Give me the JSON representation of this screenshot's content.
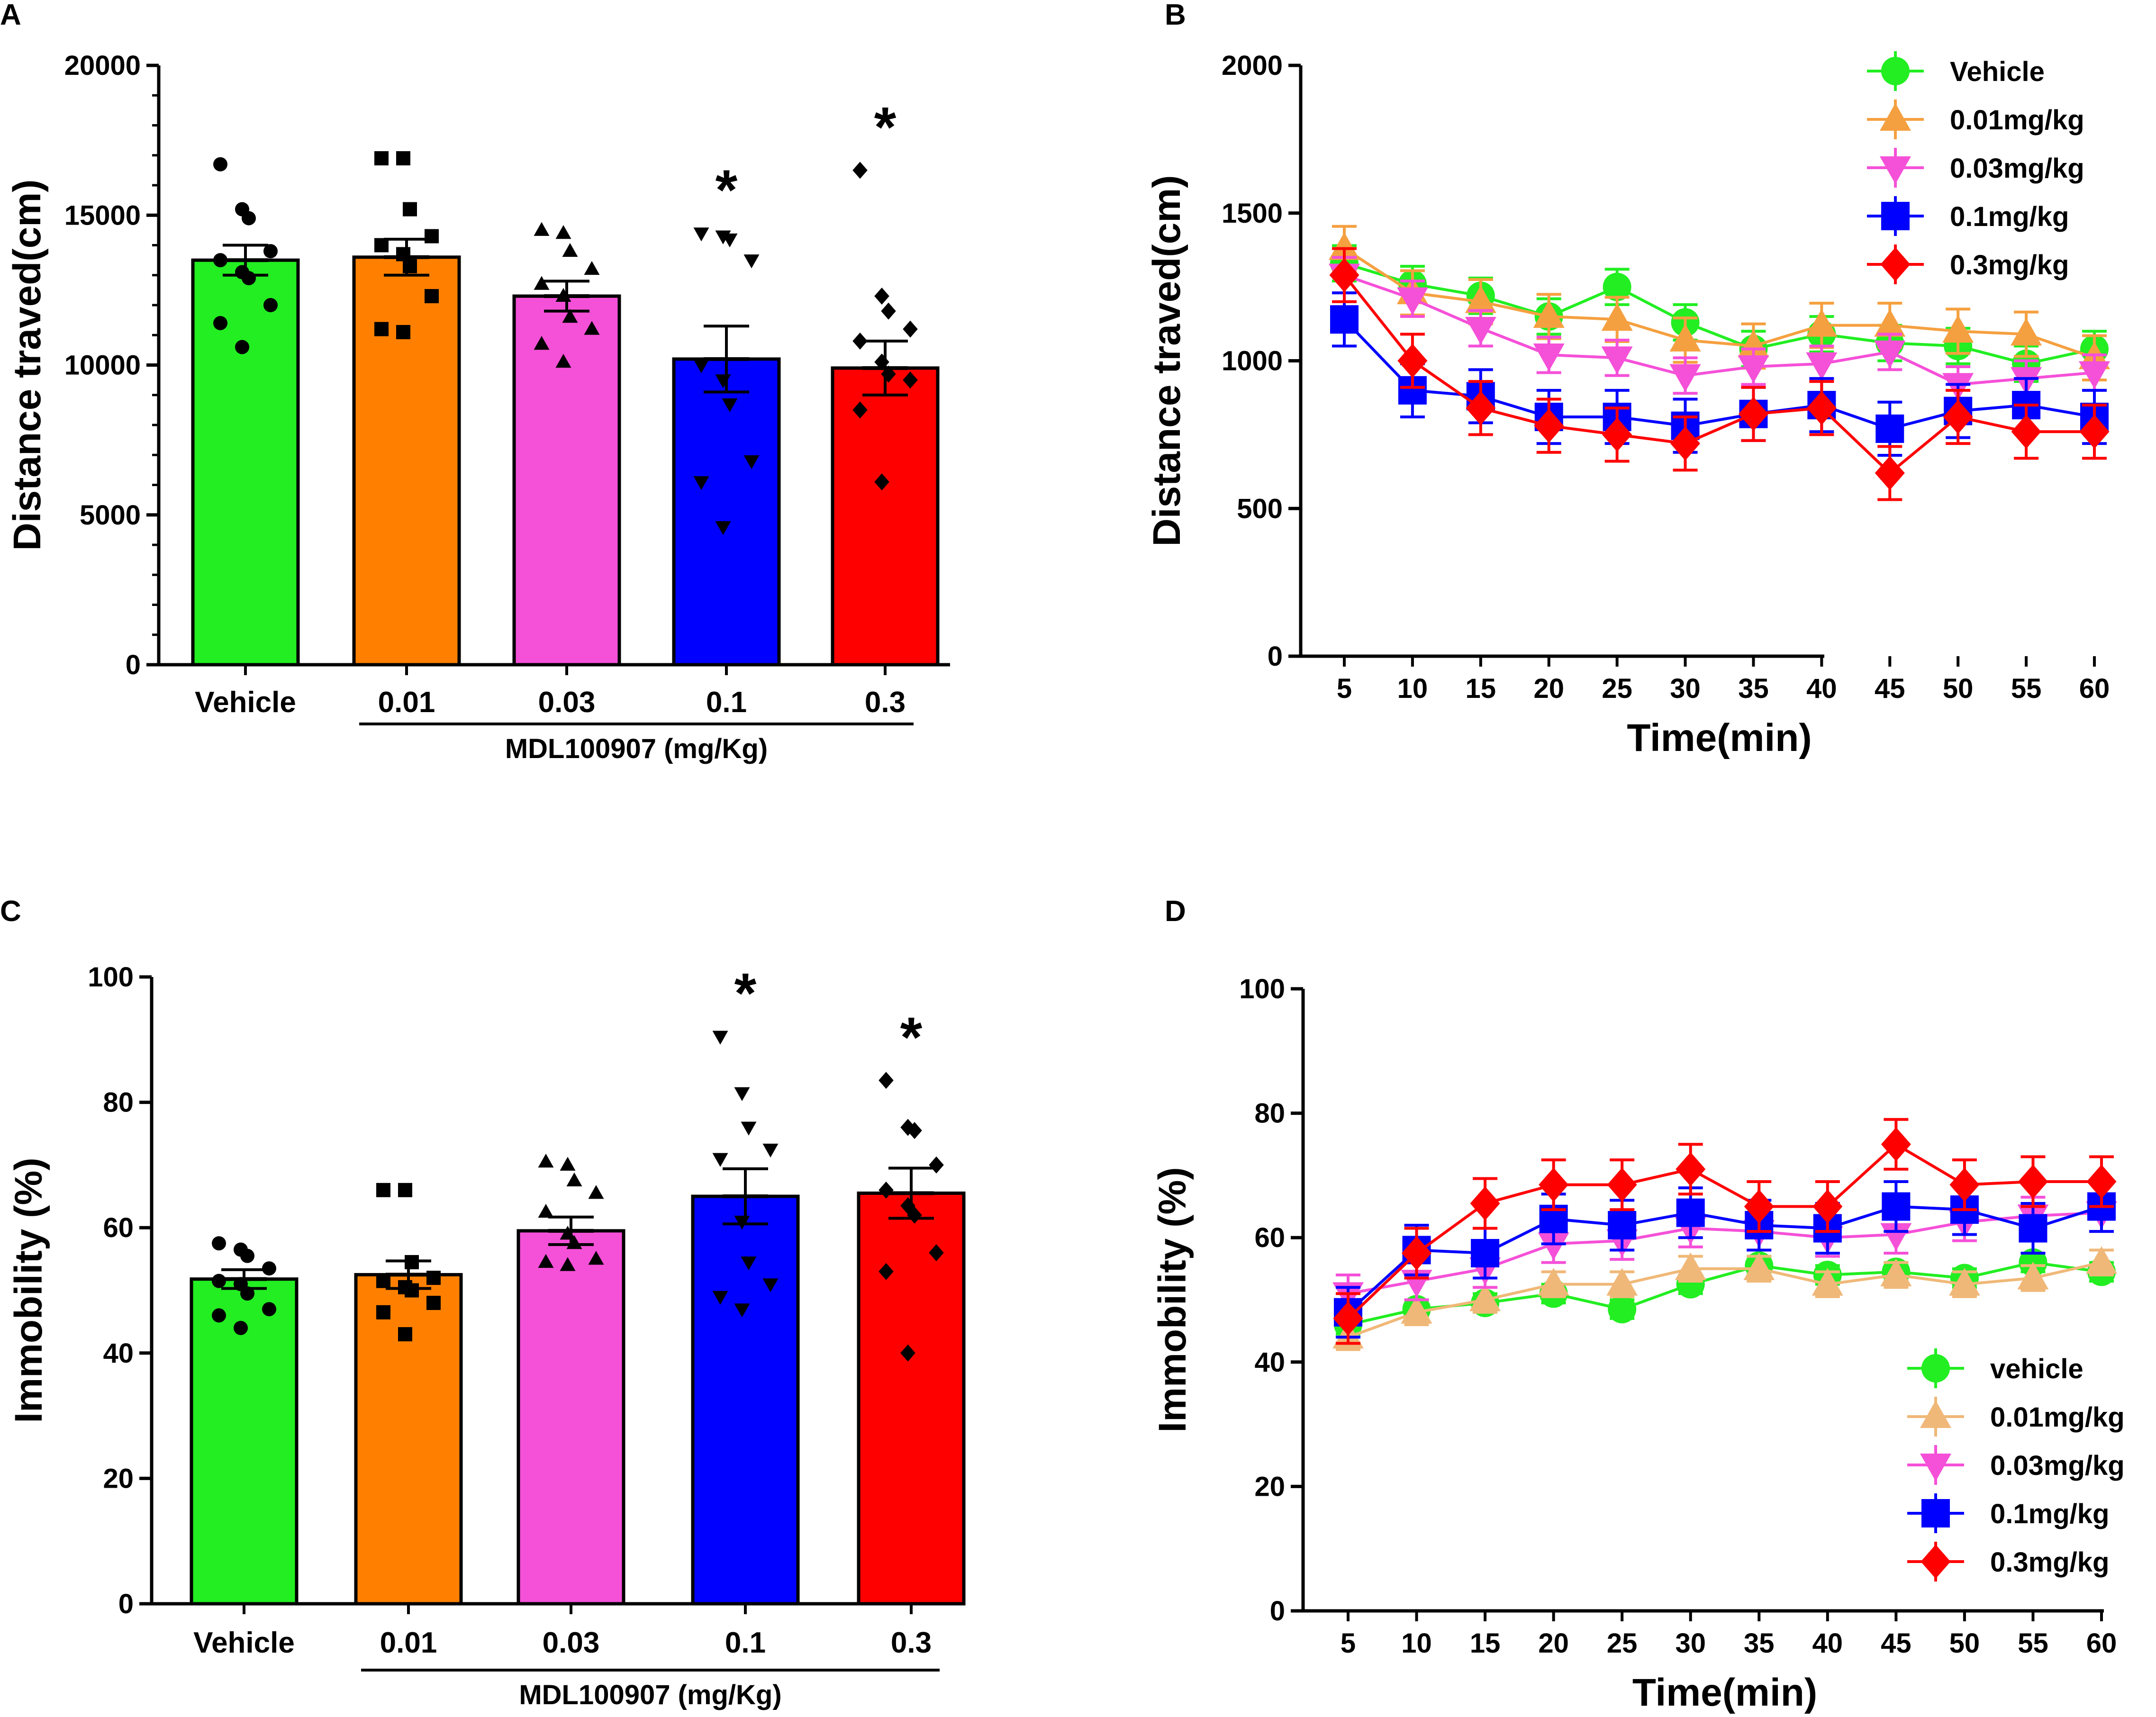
{
  "chart_data": [
    {
      "panel": "A",
      "type": "bar",
      "ylabel": "Distance traved(cm)",
      "xlabel": "",
      "ylim": [
        0,
        20000
      ],
      "yticks": [
        0,
        5000,
        10000,
        15000,
        20000
      ],
      "categories": [
        "Vehicle",
        "0.01",
        "0.03",
        "0.1",
        "0.3"
      ],
      "group_label": "MDL100907 (mg/Kg)",
      "colors": [
        "#22ee22",
        "#ff8000",
        "#f550d8",
        "#0000ff",
        "#ff0000"
      ],
      "values": [
        13500,
        13600,
        12300,
        10200,
        9900
      ],
      "sem": [
        500,
        600,
        500,
        1100,
        900
      ],
      "markers": [
        "circle",
        "square",
        "triangle-up",
        "triangle-down",
        "diamond"
      ],
      "points": [
        [
          16700,
          15200,
          14900,
          13800,
          13500,
          13100,
          12900,
          12000,
          11400,
          10600
        ],
        [
          16900,
          16900,
          15200,
          14300,
          14000,
          13700,
          13300,
          12300,
          11200,
          11100
        ],
        [
          14500,
          14400,
          13800,
          13200,
          12700,
          12300,
          11600,
          11200,
          10700,
          10100
        ],
        [
          14400,
          14300,
          14200,
          13500,
          10000,
          9500,
          8700,
          6800,
          6100,
          4600
        ],
        [
          16500,
          12300,
          11800,
          11200,
          10800,
          10100,
          9700,
          9500,
          8500,
          6100
        ]
      ],
      "annotations": [
        "",
        "",
        "",
        "*",
        "*"
      ]
    },
    {
      "panel": "B",
      "type": "line",
      "ylabel": "Distance traved(cm)",
      "xlabel": "Time(min)",
      "ylim": [
        0,
        2000
      ],
      "yticks": [
        0,
        500,
        1000,
        1500,
        2000
      ],
      "x": [
        5,
        10,
        15,
        20,
        25,
        30,
        35,
        40,
        45,
        50,
        55,
        60
      ],
      "series": [
        {
          "name": "Vehicle",
          "color": "#22ee22",
          "marker": "circle",
          "values": [
            1330,
            1260,
            1220,
            1150,
            1250,
            1130,
            1040,
            1090,
            1060,
            1050,
            990,
            1040
          ],
          "err": 60
        },
        {
          "name": "0.01mg/kg",
          "color": "#f5a040",
          "marker": "triangle-up",
          "values": [
            1380,
            1230,
            1200,
            1150,
            1140,
            1070,
            1050,
            1120,
            1120,
            1100,
            1090,
            1010
          ],
          "err": 75
        },
        {
          "name": "0.03mg/kg",
          "color": "#f550d8",
          "marker": "triangle-down",
          "values": [
            1290,
            1210,
            1110,
            1020,
            1010,
            950,
            980,
            990,
            1030,
            920,
            940,
            960
          ],
          "err": 60
        },
        {
          "name": "0.1mg/kg",
          "color": "#0000ff",
          "marker": "square",
          "values": [
            1140,
            900,
            880,
            810,
            810,
            780,
            820,
            850,
            770,
            830,
            850,
            810
          ],
          "err": 90
        },
        {
          "name": "0.3mg/kg",
          "color": "#ff0000",
          "marker": "diamond",
          "values": [
            1290,
            1000,
            840,
            780,
            750,
            720,
            820,
            840,
            620,
            810,
            760,
            760
          ],
          "err": 90
        }
      ],
      "legend": "top-right"
    },
    {
      "panel": "C",
      "type": "bar",
      "ylabel": "Immobility (%)",
      "xlabel": "",
      "ylim": [
        0,
        100
      ],
      "yticks": [
        0,
        20,
        40,
        60,
        80,
        100
      ],
      "categories": [
        "Vehicle",
        "0.01",
        "0.03",
        "0.1",
        "0.3"
      ],
      "group_label": "MDL100907 (mg/Kg)",
      "colors": [
        "#22ee22",
        "#ff8000",
        "#f550d8",
        "#0000ff",
        "#ff0000"
      ],
      "values": [
        51.8,
        52.5,
        59.5,
        65.0,
        65.5
      ],
      "sem": [
        1.5,
        2.2,
        2.2,
        4.4,
        4.0
      ],
      "markers": [
        "circle",
        "square",
        "triangle-up",
        "triangle-down",
        "diamond"
      ],
      "points": [
        [
          57.5,
          56.5,
          55.5,
          53.5,
          51.5,
          51.0,
          49.5,
          47.0,
          46.0,
          44.0
        ],
        [
          66.0,
          66.0,
          54.5,
          52.0,
          51.5,
          50.5,
          50.0,
          48.0,
          46.5,
          43.0
        ],
        [
          70.5,
          70.0,
          67.5,
          65.5,
          62.5,
          59.0,
          57.5,
          55.0,
          54.5,
          54.0
        ],
        [
          90.5,
          81.5,
          76.0,
          72.5,
          71.0,
          61.0,
          54.5,
          51.0,
          49.0,
          47.0
        ],
        [
          83.5,
          76.0,
          75.5,
          70.0,
          66.0,
          63.5,
          62.0,
          56.0,
          53.0,
          40.0
        ]
      ],
      "annotations": [
        "",
        "",
        "",
        "*",
        "*"
      ]
    },
    {
      "panel": "D",
      "type": "line",
      "ylabel": "Immobility (%)",
      "xlabel": "Time(min)",
      "ylim": [
        0,
        100
      ],
      "yticks": [
        0,
        20,
        40,
        60,
        80,
        100
      ],
      "x": [
        5,
        10,
        15,
        20,
        25,
        30,
        35,
        40,
        45,
        50,
        55,
        60
      ],
      "series": [
        {
          "name": "vehicle",
          "color": "#22ee22",
          "marker": "circle",
          "values": [
            46,
            48.5,
            49.5,
            51,
            48.5,
            52.5,
            55.5,
            54,
            54.5,
            53.5,
            56,
            54.5
          ],
          "err": 1.5
        },
        {
          "name": "0.01mg/kg",
          "color": "#f0b878",
          "marker": "triangle-up",
          "values": [
            44,
            48,
            50,
            52.5,
            52.5,
            55,
            55,
            52.5,
            54,
            52.5,
            53.5,
            56
          ],
          "err": 2
        },
        {
          "name": "0.03mg/kg",
          "color": "#f550d8",
          "marker": "triangle-down",
          "values": [
            51,
            53,
            55,
            59,
            59.5,
            61.5,
            61,
            60,
            60.5,
            62.5,
            63.5,
            64
          ],
          "err": 3
        },
        {
          "name": "0.1mg/kg",
          "color": "#0000ff",
          "marker": "square",
          "values": [
            48,
            58,
            57.5,
            63,
            62,
            64,
            62,
            61.5,
            65,
            64.5,
            61.5,
            65
          ],
          "err": 4
        },
        {
          "name": "0.3mg/kg",
          "color": "#ff0000",
          "marker": "diamond",
          "values": [
            47,
            57.5,
            65.5,
            68.5,
            68.5,
            71,
            65,
            65,
            75,
            68.5,
            69,
            69
          ],
          "err": 4
        }
      ],
      "legend": "bottom-right"
    }
  ]
}
